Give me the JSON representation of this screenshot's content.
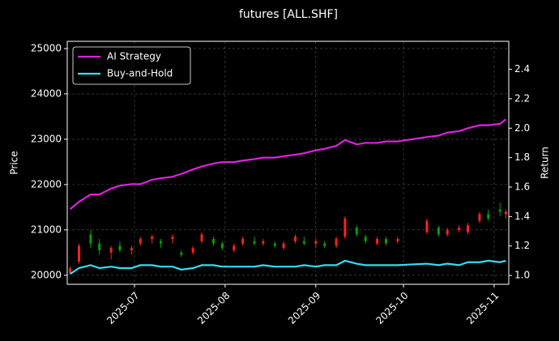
{
  "chart_data": {
    "type": "candlestick",
    "title": "futures [ALL.SHF]",
    "ylabel": "Price",
    "y2label": "Return",
    "x": [
      "2025-06-09",
      "2025-06-12",
      "2025-06-16",
      "2025-06-19",
      "2025-06-23",
      "2025-06-26",
      "2025-06-30",
      "2025-07-03",
      "2025-07-07",
      "2025-07-10",
      "2025-07-14",
      "2025-07-17",
      "2025-07-21",
      "2025-07-24",
      "2025-07-28",
      "2025-07-31",
      "2025-08-04",
      "2025-08-07",
      "2025-08-11",
      "2025-08-14",
      "2025-08-18",
      "2025-08-21",
      "2025-08-25",
      "2025-08-28",
      "2025-09-01",
      "2025-09-04",
      "2025-09-08",
      "2025-09-11",
      "2025-09-15",
      "2025-09-18",
      "2025-09-22",
      "2025-09-25",
      "2025-09-29",
      "2025-10-09",
      "2025-10-13",
      "2025-10-16",
      "2025-10-20",
      "2025-10-23",
      "2025-10-27",
      "2025-10-30",
      "2025-11-03",
      "2025-11-05"
    ],
    "open": [
      20050,
      20300,
      20900,
      20700,
      20500,
      20650,
      20550,
      20700,
      20800,
      20750,
      20800,
      20500,
      20500,
      20750,
      20800,
      20700,
      20550,
      20700,
      20750,
      20700,
      20700,
      20600,
      20750,
      20750,
      20700,
      20700,
      20650,
      20850,
      21050,
      20850,
      20700,
      20800,
      20750,
      20950,
      21050,
      20900,
      21000,
      20950,
      21200,
      21350,
      21450,
      21350
    ],
    "high": [
      20200,
      20700,
      21000,
      20800,
      20650,
      20750,
      20650,
      20850,
      20900,
      20800,
      20900,
      20550,
      20650,
      20950,
      20850,
      20750,
      20700,
      20850,
      20850,
      20800,
      20750,
      20750,
      20900,
      20850,
      20800,
      20750,
      20850,
      21300,
      21100,
      20900,
      20850,
      20850,
      20850,
      21250,
      21100,
      21050,
      21100,
      21150,
      21400,
      21450,
      21600,
      21450
    ],
    "low": [
      20020,
      20250,
      20600,
      20450,
      20350,
      20500,
      20450,
      20650,
      20700,
      20600,
      20700,
      20400,
      20450,
      20700,
      20650,
      20550,
      20500,
      20650,
      20650,
      20650,
      20600,
      20550,
      20700,
      20650,
      20600,
      20600,
      20600,
      20800,
      20850,
      20700,
      20650,
      20650,
      20700,
      20900,
      20850,
      20850,
      20950,
      20900,
      21150,
      21200,
      21300,
      21250
    ],
    "close": [
      20150,
      20650,
      20700,
      20550,
      20600,
      20550,
      20600,
      20800,
      20850,
      20700,
      20850,
      20450,
      20600,
      20900,
      20700,
      20600,
      20650,
      20800,
      20700,
      20750,
      20650,
      20700,
      20850,
      20700,
      20750,
      20650,
      20800,
      21250,
      20900,
      20750,
      20800,
      20700,
      20800,
      21200,
      20900,
      21000,
      21050,
      21100,
      21350,
      21250,
      21400,
      21400
    ],
    "up_color": "#ff2020",
    "down_color": "#00a000",
    "series": [
      {
        "name": "AI Strategy",
        "color": "#e020e0",
        "axis": "y2",
        "values": [
          1.45,
          1.5,
          1.55,
          1.55,
          1.59,
          1.61,
          1.62,
          1.62,
          1.65,
          1.66,
          1.67,
          1.69,
          1.72,
          1.74,
          1.76,
          1.77,
          1.77,
          1.78,
          1.79,
          1.8,
          1.8,
          1.81,
          1.82,
          1.83,
          1.85,
          1.86,
          1.88,
          1.92,
          1.89,
          1.9,
          1.9,
          1.91,
          1.91,
          1.94,
          1.95,
          1.97,
          1.98,
          2.0,
          2.02,
          2.02,
          2.03,
          2.06
        ]
      },
      {
        "name": "Buy-and-Hold",
        "color": "#30e0f0",
        "axis": "y2",
        "values": [
          1.01,
          1.05,
          1.07,
          1.05,
          1.06,
          1.05,
          1.05,
          1.07,
          1.07,
          1.06,
          1.06,
          1.04,
          1.05,
          1.07,
          1.07,
          1.06,
          1.06,
          1.06,
          1.06,
          1.07,
          1.06,
          1.06,
          1.06,
          1.07,
          1.06,
          1.07,
          1.07,
          1.1,
          1.08,
          1.07,
          1.07,
          1.07,
          1.07,
          1.08,
          1.07,
          1.08,
          1.07,
          1.09,
          1.09,
          1.1,
          1.09,
          1.1
        ]
      }
    ],
    "xlim": [
      "2025-06-08",
      "2025-11-06"
    ],
    "xticks": [
      {
        "value": "2025-07-01",
        "label": "2025-07"
      },
      {
        "value": "2025-08-01",
        "label": "2025-08"
      },
      {
        "value": "2025-09-01",
        "label": "2025-09"
      },
      {
        "value": "2025-10-01",
        "label": "2025-10"
      },
      {
        "value": "2025-11-01",
        "label": "2025-11"
      }
    ],
    "ylim": [
      19800,
      25160
    ],
    "yticks": [
      20000,
      21000,
      22000,
      23000,
      24000,
      25000
    ],
    "y2lim": [
      0.94,
      2.59
    ],
    "y2ticks": [
      {
        "value": 1.0,
        "label": "1.0"
      },
      1.2,
      1.4,
      1.6,
      1.8,
      {
        "value": 2.0,
        "label": "2.0"
      },
      2.2,
      2.4
    ],
    "grid": true,
    "legend": "upper left"
  }
}
